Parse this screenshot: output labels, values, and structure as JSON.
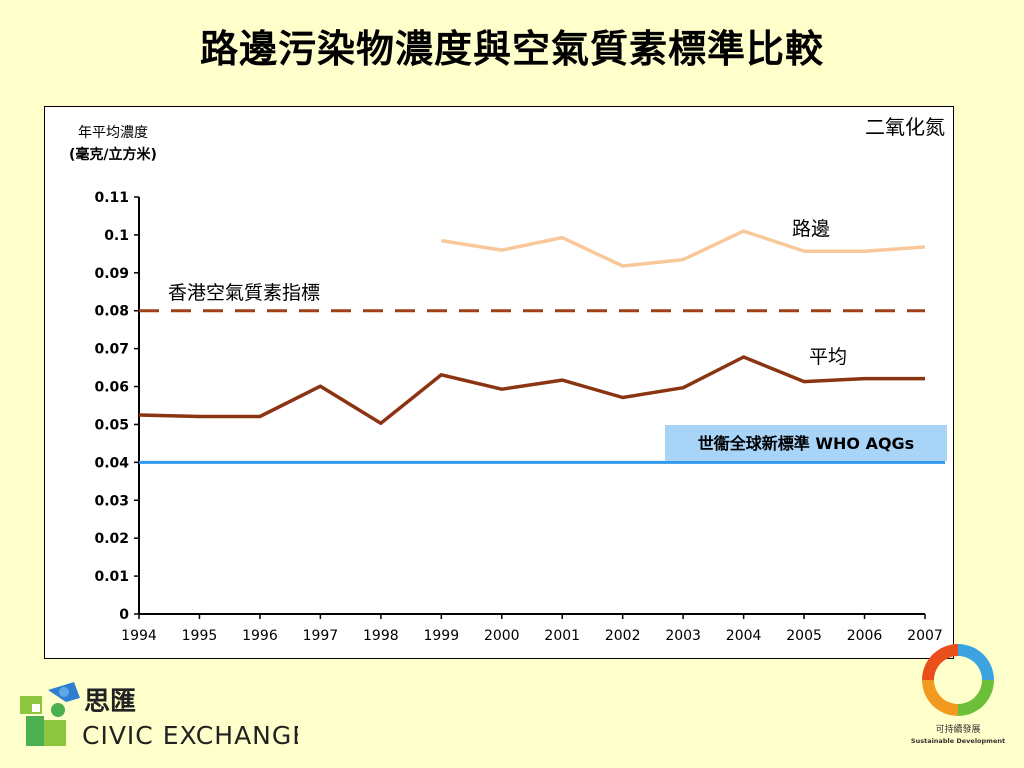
{
  "slide_title": "路邊污染物濃度與空氣質素標準比較",
  "chart_data": {
    "type": "line",
    "pollutant_label": "二氧化氮",
    "ylabel_line1": "年平均濃度",
    "ylabel_line2": "(毫克/立方米)",
    "x": [
      "1994",
      "1995",
      "1996",
      "1997",
      "1998",
      "1999",
      "2000",
      "2001",
      "2002",
      "2003",
      "2004",
      "2005",
      "2006",
      "2007"
    ],
    "ylim": [
      0,
      0.11
    ],
    "yticks": [
      "0",
      "0.01",
      "0.02",
      "0.03",
      "0.04",
      "0.05",
      "0.06",
      "0.07",
      "0.08",
      "0.09",
      "0.1",
      "0.11"
    ],
    "grid": false,
    "series": [
      {
        "name": "路邊",
        "color": "#f9c89a",
        "values": [
          null,
          null,
          null,
          null,
          null,
          0.0985,
          0.096,
          0.0993,
          0.0918,
          0.0935,
          0.101,
          0.0957,
          0.0957,
          0.0968
        ]
      },
      {
        "name": "平均",
        "color": "#8b3412",
        "values": [
          0.0525,
          0.0521,
          0.0521,
          0.0601,
          0.0503,
          0.0631,
          0.0593,
          0.0617,
          0.0571,
          0.0597,
          0.0678,
          0.0613,
          0.0621,
          0.0621
        ]
      }
    ],
    "reference_lines": [
      {
        "name": "香港空氣質素指標",
        "value": 0.08,
        "color": "#a0401a",
        "style": "dashed"
      },
      {
        "name": "世衞全球新標準 WHO AQGs",
        "value": 0.04,
        "color": "#3399ee",
        "style": "solid"
      }
    ]
  },
  "logos": {
    "civic_chinese": "思匯",
    "civic_english": "CIVIC EXCHANGE",
    "sd_chinese": "可持續發展",
    "sd_english": "Sustainable Development"
  }
}
